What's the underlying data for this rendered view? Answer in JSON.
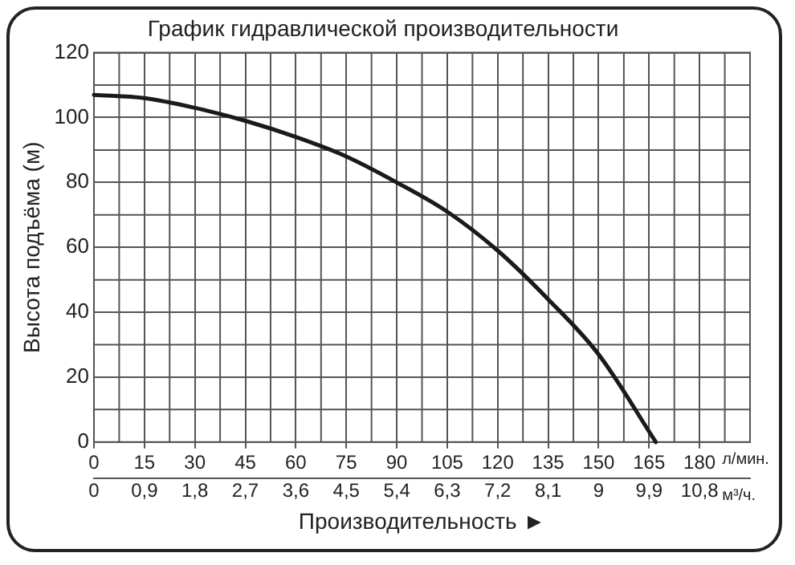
{
  "chart_data": {
    "type": "line",
    "title": "График гидравлической производительности",
    "xlabel": "Производительность ►",
    "ylabel": "Высота подъёма (м)",
    "x": [
      0,
      15,
      30,
      45,
      60,
      75,
      90,
      105,
      120,
      135,
      150,
      167
    ],
    "series": [
      {
        "color": "#1a1a1a",
        "values": [
          107,
          106,
          103,
          99,
          94,
          88,
          80,
          71,
          59,
          44,
          27,
          0
        ]
      }
    ],
    "xlim": [
      0,
      195
    ],
    "xticks": [
      0,
      15,
      30,
      45,
      60,
      75,
      90,
      105,
      120,
      135,
      150,
      165,
      180
    ],
    "x2lim": [
      0,
      11.7
    ],
    "x2ticks": [
      0,
      {
        "value": 0.9,
        "label": "0,9"
      },
      {
        "value": 1.8,
        "label": "1,8"
      },
      {
        "value": 2.7,
        "label": "2,7"
      },
      {
        "value": 3.6,
        "label": "3,6"
      },
      {
        "value": 4.5,
        "label": "4,5"
      },
      {
        "value": 5.4,
        "label": "5,4"
      },
      {
        "value": 6.3,
        "label": "6,3"
      },
      {
        "value": 7.2,
        "label": "7,2"
      },
      {
        "value": 8.1,
        "label": "8,1"
      },
      9,
      {
        "value": 9.9,
        "label": "9,9"
      },
      {
        "value": 10.8,
        "label": "10,8"
      }
    ],
    "ylim": [
      0,
      120
    ],
    "yticks": [
      0,
      20,
      40,
      60,
      80,
      100,
      120
    ],
    "annotations": [
      "л/мин.",
      "м³/ч."
    ],
    "grid": true,
    "legend": false,
    "marker": "none",
    "line_style": "solid"
  }
}
